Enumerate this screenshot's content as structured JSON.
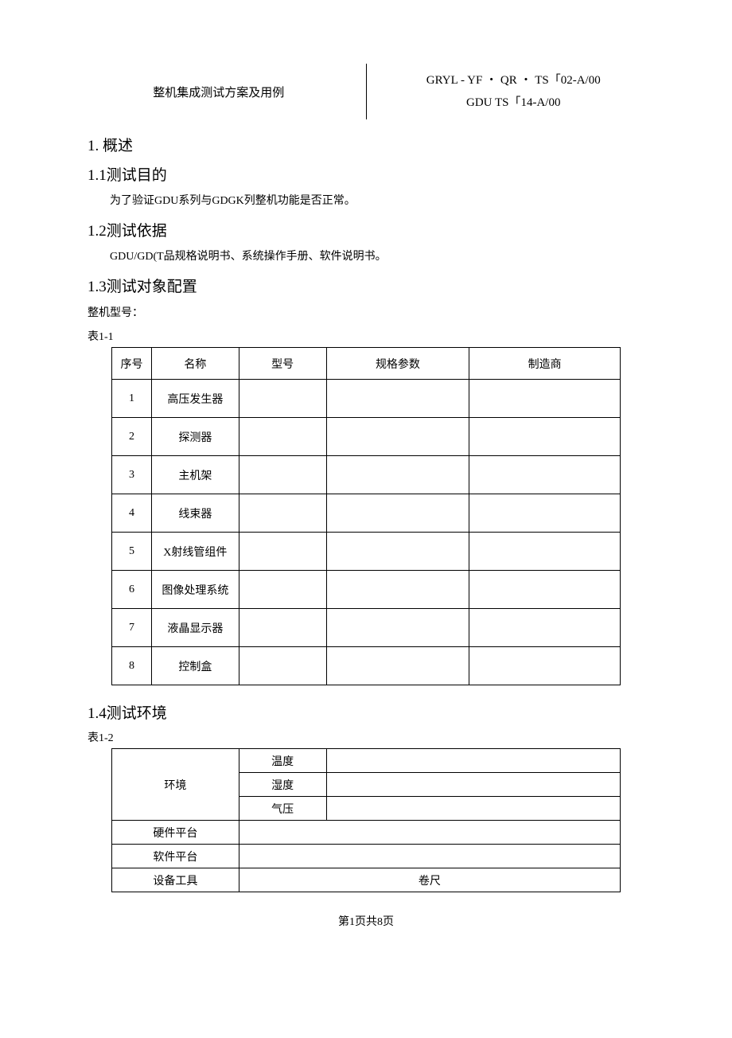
{
  "header": {
    "left_title": "整机集成测试方案及用例",
    "right_line1": "GRYL - YF ・ QR ・ TS「02-A/00",
    "right_line2": "GDU TS「14-A/00"
  },
  "sections": {
    "s1": "1. 概述",
    "s1_1": "1.1测试目的",
    "s1_1_body": "为了验证GDU系列与GDGK列整机功能是否正常。",
    "s1_2": "1.2测试依据",
    "s1_2_body": "GDU/GD(T品规格说明书、系统操作手册、软件说明书。",
    "s1_3": "1.3测试对象配置",
    "s1_3_label": "整机型号：",
    "s1_4": "1.4测试环境"
  },
  "table1": {
    "caption": "表1-1",
    "headers": {
      "seq": "序号",
      "name": "名称",
      "model": "型号",
      "spec": "规格参数",
      "mfr": "制造商"
    },
    "rows": [
      {
        "seq": "1",
        "name": "高压发生器",
        "model": "",
        "spec": "",
        "mfr": ""
      },
      {
        "seq": "2",
        "name": "探测器",
        "model": "",
        "spec": "",
        "mfr": ""
      },
      {
        "seq": "3",
        "name": "主机架",
        "model": "",
        "spec": "",
        "mfr": ""
      },
      {
        "seq": "4",
        "name": "线束器",
        "model": "",
        "spec": "",
        "mfr": ""
      },
      {
        "seq": "5",
        "name": "X射线管组件",
        "model": "",
        "spec": "",
        "mfr": ""
      },
      {
        "seq": "6",
        "name": "图像处理系统",
        "model": "",
        "spec": "",
        "mfr": ""
      },
      {
        "seq": "7",
        "name": "液晶显示器",
        "model": "",
        "spec": "",
        "mfr": ""
      },
      {
        "seq": "8",
        "name": "控制盒",
        "model": "",
        "spec": "",
        "mfr": ""
      }
    ]
  },
  "table2": {
    "caption": "表1-2",
    "env_label": "环境",
    "env_rows": {
      "temp": "温度",
      "humidity": "湿度",
      "pressure": "气压"
    },
    "env_values": {
      "temp": "",
      "humidity": "",
      "pressure": ""
    },
    "hw_label": "硬件平台",
    "hw_value": "",
    "sw_label": "软件平台",
    "sw_value": "",
    "tool_label": "设备工具",
    "tool_value": "卷尺"
  },
  "footer": "第1页共8页"
}
